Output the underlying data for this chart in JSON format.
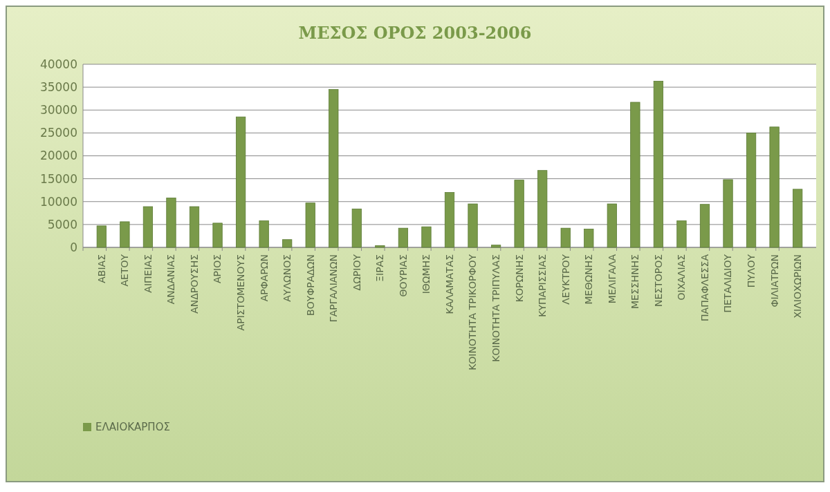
{
  "chart_data": {
    "type": "bar",
    "title": "ΜΕΣΟΣ ΟΡΟΣ 2003-2006",
    "categories": [
      "ΑΒΙΑΣ",
      "ΑΕΤΟΥ",
      "ΑΙΠΕΙΑΣ",
      "ΑΝΔΑΝΙΑΣ",
      "ΑΝΔΡΟΥΣΗΣ",
      "ΑΡΙΟΣ",
      "ΑΡΙΣΤΟΜΕΝΟΥΣ",
      "ΑΡΦΑΡΩΝ",
      "ΑΥΛΩΝΟΣ",
      "ΒΟΥΦΡΑΔΩΝ",
      "ΓΑΡΓΑΛΙΑΝΩΝ",
      "ΔΩΡΙΟΥ",
      "ΞΙΡΑΣ",
      "ΘΟΥΡΙΑΣ",
      "ΙΘΩΜΗΣ",
      "ΚΑΛΑΜΑΤΑΣ",
      "ΚΟΙΝΟΤΗΤΑ ΤΡΙΚΟΡΦΟΥ",
      "ΚΟΙΝΟΤΗΤΑ ΤΡΙΠΥΛΑΣ",
      "ΚΟΡΩΝΗΣ",
      "ΚΥΠΑΡΙΣΣΙΑΣ",
      "ΛΕΥΚΤΡΟΥ",
      "ΜΕΘΩΝΗΣ",
      "ΜΕΛΙΓΑΛΑ",
      "ΜΕΣΣΗΝΗΣ",
      "ΝΕΣΤΟΡΟΣ",
      "ΟΙΧΑΛΙΑΣ",
      "ΠΑΠΑΦΛΕΣΣΑ",
      "ΠΕΤΑΛΙΔΙΟΥ",
      "ΠΥΛΟΥ",
      "ΦΙΛΙΑΤΡΩΝ",
      "ΧΙΛΙΟΧΩΡΙΩΝ"
    ],
    "series": [
      {
        "name": "ΕΛΑΙΟΚΑΡΠΟΣ",
        "color": "#7a9a4a",
        "values": [
          4700,
          5600,
          8900,
          10800,
          8900,
          5300,
          28500,
          5800,
          1700,
          9700,
          34500,
          8400,
          400,
          4200,
          4500,
          12000,
          9500,
          500,
          14700,
          16800,
          4200,
          4000,
          9500,
          31700,
          36300,
          5800,
          9400,
          14800,
          25000,
          26300,
          12700
        ]
      }
    ],
    "ylim": [
      0,
      40000
    ],
    "yticks": [
      0,
      5000,
      10000,
      15000,
      20000,
      25000,
      30000,
      35000,
      40000
    ],
    "grid": "y",
    "legend": "bottom left"
  }
}
